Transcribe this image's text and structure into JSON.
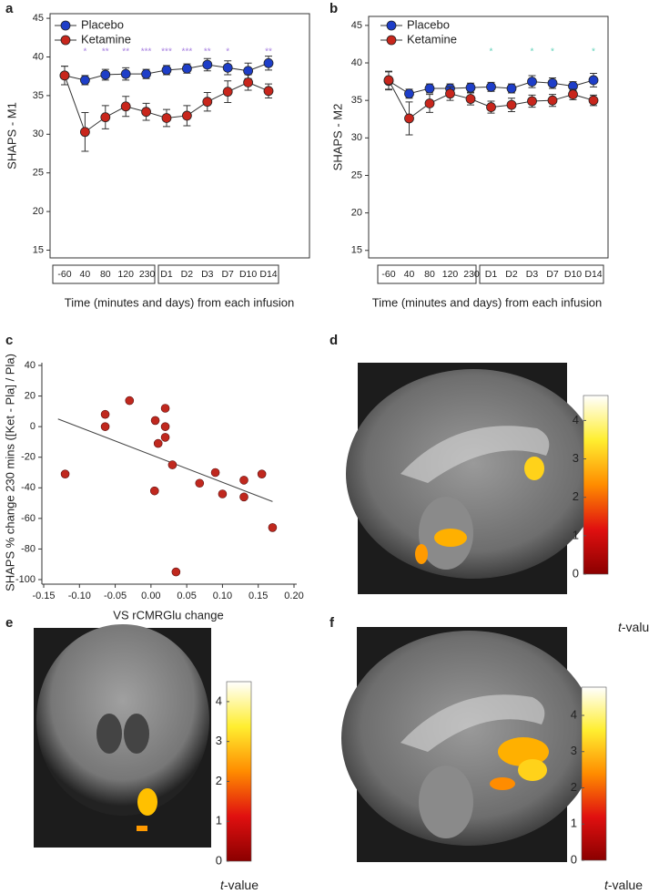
{
  "chart_data": [
    {
      "type": "line",
      "label": "a",
      "ylabel": "SHAPS - M1",
      "xlabel": "Time (minutes and days) from each infusion",
      "categories": [
        "-60",
        "40",
        "80",
        "120",
        "230",
        "D1",
        "D2",
        "D3",
        "D7",
        "D10",
        "D14"
      ],
      "series": [
        {
          "name": "Placebo",
          "color": "#1e3ec8",
          "values": [
            37.6,
            37.0,
            37.7,
            37.8,
            37.8,
            38.3,
            38.5,
            39.0,
            38.6,
            38.2,
            39.2
          ],
          "errors": [
            1.2,
            0.6,
            0.7,
            0.8,
            0.6,
            0.6,
            0.6,
            0.8,
            0.9,
            1.0,
            0.9
          ]
        },
        {
          "name": "Ketamine",
          "color": "#c8261c",
          "values": [
            37.6,
            30.3,
            32.2,
            33.6,
            32.9,
            32.1,
            32.4,
            34.2,
            35.5,
            36.7,
            35.6
          ],
          "errors": [
            1.2,
            2.5,
            1.5,
            1.3,
            1.1,
            1.1,
            1.3,
            1.2,
            1.4,
            1.0,
            0.9
          ]
        }
      ],
      "annotations": [
        null,
        "*",
        "**",
        "**",
        "***",
        "***",
        "***",
        "**",
        "*",
        null,
        "**"
      ],
      "annotation_color": "#a77fe0",
      "ylim": [
        14,
        45.6
      ],
      "yticks": [
        15,
        20,
        25,
        30,
        35,
        40,
        45
      ]
    },
    {
      "type": "line",
      "label": "b",
      "ylabel": "SHAPS - M2",
      "xlabel": "Time (minutes and days) from each infusion",
      "categories": [
        "-60",
        "40",
        "80",
        "120",
        "230",
        "D1",
        "D2",
        "D3",
        "D7",
        "D10",
        "D14"
      ],
      "series": [
        {
          "name": "Placebo",
          "color": "#1e3ec8",
          "values": [
            37.6,
            35.9,
            36.6,
            36.6,
            36.7,
            36.8,
            36.6,
            37.5,
            37.3,
            36.9,
            37.7
          ],
          "errors": [
            1.2,
            0.6,
            0.6,
            0.6,
            0.6,
            0.6,
            0.6,
            0.8,
            0.7,
            0.6,
            0.9
          ]
        },
        {
          "name": "Ketamine",
          "color": "#c8261c",
          "values": [
            37.7,
            32.6,
            34.6,
            35.9,
            35.2,
            34.1,
            34.4,
            34.9,
            35.0,
            35.8,
            35.0
          ],
          "errors": [
            1.2,
            2.2,
            1.2,
            0.9,
            0.8,
            0.8,
            0.9,
            0.8,
            0.8,
            0.7,
            0.7
          ]
        }
      ],
      "annotations": [
        null,
        null,
        null,
        null,
        null,
        "*",
        null,
        "*",
        "*",
        null,
        "*"
      ],
      "annotation_color": "#5fd1b8",
      "ylim": [
        14,
        46.2
      ],
      "yticks": [
        15,
        20,
        25,
        30,
        35,
        40,
        45
      ]
    },
    {
      "type": "scatter",
      "label": "c",
      "ylabel": "SHAPS % change  230 mins ([Ket - Pla] / Pla)",
      "xlabel": "VS rCMRGlu change",
      "color": "#c0281e",
      "x": [
        -0.12,
        -0.064,
        -0.064,
        -0.03,
        0.006,
        0.01,
        0.02,
        0.02,
        0.02,
        0.03,
        0.005,
        0.068,
        0.09,
        0.1,
        0.13,
        0.13,
        0.155,
        0.17,
        0.035
      ],
      "values": [
        -31,
        8,
        0,
        17,
        4,
        -11,
        12,
        0,
        -7,
        -25,
        -42,
        -37,
        -30,
        -44,
        -46,
        -35,
        -31,
        -66,
        -95
      ],
      "trend": {
        "x": [
          -0.13,
          0.17
        ],
        "values": [
          5,
          -49
        ]
      },
      "xlim": [
        -0.15,
        0.2
      ],
      "xticks": [
        -0.15,
        {
          "value": -0.1,
          "label": "-0.10"
        },
        -0.05,
        {
          "value": 0,
          "label": "0.00"
        },
        0.05,
        {
          "value": 0.1,
          "label": "0.10"
        },
        0.15,
        {
          "value": 0.2,
          "label": "0.20"
        }
      ],
      "ylim": [
        -100,
        40
      ],
      "yticks": [
        -100,
        -80,
        -60,
        -40,
        -20,
        0,
        20,
        40
      ]
    },
    {
      "type": "colorbar",
      "label": "d",
      "label_italic": "t",
      "label_rest": "-value",
      "colors": [
        "#8b0000",
        "#e01010",
        "#ff8c00",
        "#ffee30",
        "#ffffff"
      ],
      "ylim": [
        0,
        4.65
      ],
      "yticks": [
        0,
        1,
        2,
        3,
        4
      ]
    },
    {
      "type": "colorbar",
      "label": "e",
      "label_italic": "t",
      "label_rest": "-value",
      "colors": [
        "#8b0000",
        "#e01010",
        "#ff8c00",
        "#ffee30",
        "#ffffff"
      ],
      "ylim": [
        0,
        4.5
      ],
      "yticks": [
        0,
        1,
        2,
        3,
        4
      ]
    },
    {
      "type": "colorbar",
      "label": "f",
      "label_italic": "t",
      "label_rest": "-value",
      "colors": [
        "#8b0000",
        "#e01010",
        "#ff8c00",
        "#ffee30",
        "#ffffff"
      ],
      "ylim": [
        0,
        4.78
      ],
      "yticks": [
        0,
        1,
        2,
        3,
        4
      ]
    }
  ]
}
